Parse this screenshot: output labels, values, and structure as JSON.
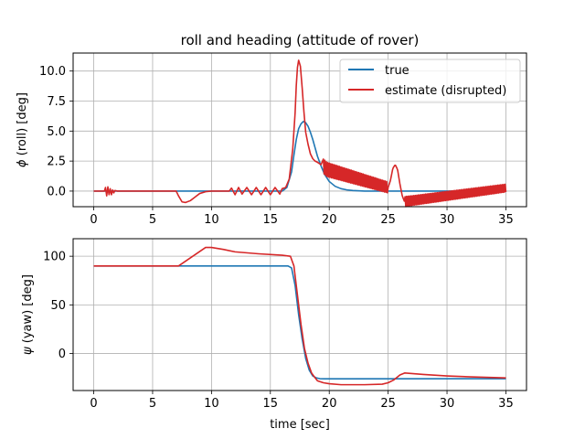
{
  "chart_data": [
    {
      "type": "line",
      "title": "roll and heading (attitude of rover)",
      "xlabel": "",
      "ylabel": "$\\phi$ (roll) [deg]",
      "ylabel_symbol": "ϕ",
      "ylabel_text": " (roll) [deg]",
      "xlim": [
        -1.75,
        36.75
      ],
      "ylim": [
        -1.3,
        11.5
      ],
      "xticks": [
        0,
        5,
        10,
        15,
        20,
        25,
        30,
        35
      ],
      "yticks": [
        0.0,
        2.5,
        5.0,
        7.5,
        10.0
      ],
      "ytick_labels": [
        "0.0",
        "2.5",
        "5.0",
        "7.5",
        "10.0"
      ],
      "grid": true,
      "legend_position": "top-right",
      "series": [
        {
          "name": "true",
          "color": "#1f77b4",
          "x": [
            0,
            16.0,
            16.4,
            16.8,
            17.0,
            17.2,
            17.4,
            17.6,
            17.8,
            18.0,
            18.2,
            18.4,
            18.6,
            18.8,
            19.0,
            19.3,
            19.6,
            20.0,
            20.5,
            21.0,
            21.5,
            22.0,
            23.0,
            24.0,
            25.0,
            26.0,
            35.0
          ],
          "y": [
            0,
            0,
            0.3,
            1.6,
            3.0,
            4.3,
            5.2,
            5.6,
            5.8,
            5.7,
            5.4,
            4.9,
            4.3,
            3.6,
            2.9,
            2.1,
            1.4,
            0.8,
            0.4,
            0.2,
            0.1,
            0.05,
            0,
            0,
            0,
            0,
            0
          ]
        },
        {
          "name": "estimate (disrupted)",
          "color": "#d62728",
          "x": [
            0,
            0.9,
            1.0,
            1.1,
            1.2,
            1.3,
            1.4,
            1.5,
            1.6,
            1.7,
            1.8,
            2.0,
            7.0,
            7.2,
            7.5,
            7.8,
            8.2,
            8.6,
            9.0,
            9.5,
            10.0,
            11.5,
            11.7,
            12.0,
            12.3,
            12.6,
            13.0,
            13.4,
            13.8,
            14.2,
            14.6,
            15.0,
            15.4,
            15.8,
            16.0,
            16.3,
            16.6,
            16.9,
            17.1,
            17.2,
            17.3,
            17.4,
            17.55,
            17.7,
            17.85,
            18.0,
            18.2,
            18.4,
            18.6,
            18.8,
            19.0,
            19.3,
            19.6,
            19.8,
            25.0,
            25.2,
            25.4,
            25.6,
            25.8,
            26.0,
            26.2,
            26.4,
            26.6,
            35.0
          ],
          "y": [
            0,
            0,
            0.3,
            -0.4,
            0.35,
            -0.3,
            0.2,
            -0.3,
            0.1,
            -0.15,
            0.05,
            0,
            0,
            -0.4,
            -0.9,
            -0.95,
            -0.8,
            -0.5,
            -0.2,
            -0.05,
            0,
            0,
            0.25,
            -0.3,
            0.3,
            -0.25,
            0.3,
            -0.3,
            0.3,
            -0.3,
            0.3,
            -0.3,
            0.3,
            -0.25,
            0.2,
            0.3,
            1.0,
            3.5,
            6.5,
            8.8,
            10.3,
            10.9,
            10.4,
            8.6,
            6.6,
            4.9,
            3.9,
            3.1,
            2.7,
            2.5,
            2.4,
            2.2,
            2.0,
            1.8,
            0.3,
            0.9,
            1.9,
            2.2,
            1.8,
            0.6,
            -0.4,
            -0.9,
            -0.85,
            0.25
          ],
          "oscillation": {
            "from_x": 19.5,
            "to_x": 35.0,
            "period_x": 0.25,
            "amplitude_start": 1.2,
            "amplitude_mid": 0.8,
            "amplitude_end": 0.65,
            "skip_from": 25.0,
            "skip_to": 26.4
          }
        }
      ]
    },
    {
      "type": "line",
      "title": "",
      "xlabel": "time [sec]",
      "ylabel": "$\\psi$ (yaw) [deg]",
      "ylabel_symbol": "ψ",
      "ylabel_text": " (yaw) [deg]",
      "xlim": [
        -1.75,
        36.75
      ],
      "ylim": [
        -38,
        118
      ],
      "xticks": [
        0,
        5,
        10,
        15,
        20,
        25,
        30,
        35
      ],
      "yticks": [
        0,
        50,
        100
      ],
      "ytick_labels": [
        "0",
        "50",
        "100"
      ],
      "grid": true,
      "series": [
        {
          "name": "true",
          "color": "#1f77b4",
          "x": [
            0,
            16.5,
            16.8,
            17.1,
            17.4,
            17.7,
            18.0,
            18.3,
            18.6,
            18.9,
            19.2,
            19.6,
            20.0,
            35.0
          ],
          "y": [
            90,
            90,
            88,
            70,
            40,
            15,
            -5,
            -17,
            -23,
            -25,
            -25.8,
            -26,
            -26,
            -25.8
          ]
        },
        {
          "name": "estimate (disrupted)",
          "color": "#d62728",
          "x": [
            0,
            7.2,
            9.5,
            10.0,
            11.0,
            12.0,
            14.0,
            16.0,
            16.7,
            17.0,
            17.3,
            17.6,
            17.9,
            18.2,
            18.5,
            18.8,
            19.0,
            19.5,
            20.0,
            21.0,
            23.0,
            24.5,
            25.0,
            25.5,
            26.0,
            26.4,
            28.0,
            30.0,
            32.0,
            35.0
          ],
          "y": [
            90,
            90,
            109,
            109,
            107,
            104.5,
            102.5,
            101,
            100,
            90,
            60,
            30,
            5,
            -10,
            -20,
            -25,
            -28,
            -30,
            -31,
            -32,
            -32,
            -31.5,
            -30,
            -27,
            -22,
            -20,
            -21.5,
            -23,
            -24,
            -25
          ]
        }
      ]
    }
  ]
}
